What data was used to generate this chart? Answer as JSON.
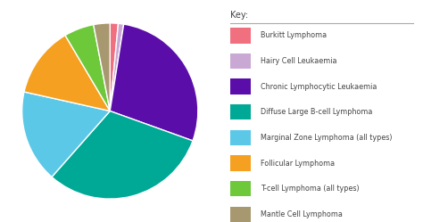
{
  "labels": [
    "Burkitt Lymphoma",
    "Hairy Cell Leukaemia",
    "Chronic Lymphocytic Leukaemia",
    "Diffuse Large B-cell Lymphoma",
    "Marginal Zone Lymphoma (all types)",
    "Follicular Lymphoma",
    "T-cell Lymphoma (all types)",
    "Mantle Cell Lymphoma"
  ],
  "values": [
    1.5,
    1.0,
    28.0,
    31.0,
    17.0,
    13.0,
    5.5,
    3.0
  ],
  "colors": [
    "#F07080",
    "#C9A8D4",
    "#5B0DAA",
    "#00A896",
    "#5BC8E8",
    "#F5A020",
    "#6DC83A",
    "#A89870"
  ],
  "legend_title": "Key:",
  "background_color": "#ffffff",
  "startangle": 90,
  "wedge_edge_color": "white"
}
